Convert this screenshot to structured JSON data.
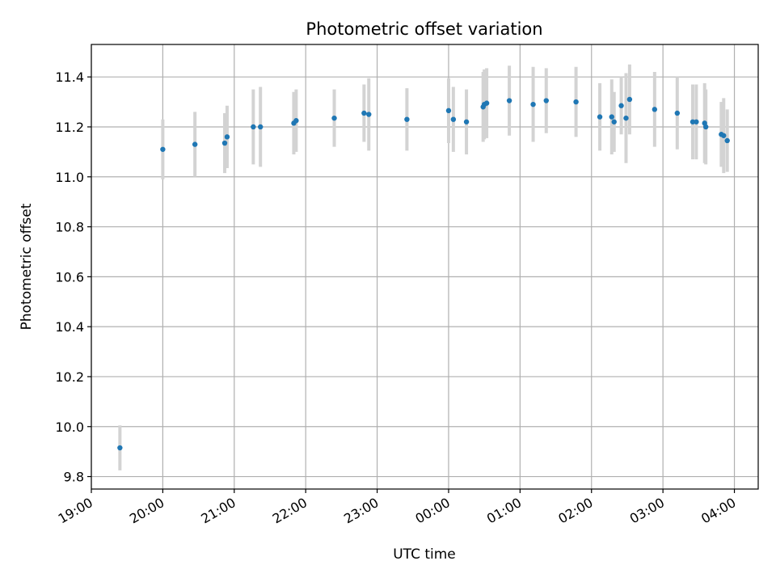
{
  "chart_data": {
    "type": "scatter",
    "title": "Photometric offset variation",
    "xlabel": "UTC time",
    "ylabel": "Photometric offset",
    "x_is_time": true,
    "xlim": [
      "19:00",
      "04:20"
    ],
    "ylim": [
      9.75,
      11.53
    ],
    "x_ticks": [
      "19:00",
      "20:00",
      "21:00",
      "22:00",
      "23:00",
      "00:00",
      "01:00",
      "02:00",
      "03:00",
      "04:00"
    ],
    "y_ticks": [
      9.8,
      10.0,
      10.2,
      10.4,
      10.6,
      10.8,
      11.0,
      11.2,
      11.4
    ],
    "grid": true,
    "marker_color": "#1f77b4",
    "errorbar_color": "#d3d3d3",
    "points": [
      {
        "t": "19:24",
        "y": 9.915,
        "err": 0.09
      },
      {
        "t": "20:00",
        "y": 11.11,
        "err": 0.12
      },
      {
        "t": "20:27",
        "y": 11.13,
        "err": 0.13
      },
      {
        "t": "20:52",
        "y": 11.135,
        "err": 0.12
      },
      {
        "t": "20:54",
        "y": 11.16,
        "err": 0.125
      },
      {
        "t": "21:16",
        "y": 11.2,
        "err": 0.15
      },
      {
        "t": "21:22",
        "y": 11.2,
        "err": 0.16
      },
      {
        "t": "21:50",
        "y": 11.215,
        "err": 0.125
      },
      {
        "t": "21:52",
        "y": 11.225,
        "err": 0.125
      },
      {
        "t": "22:24",
        "y": 11.235,
        "err": 0.115
      },
      {
        "t": "22:49",
        "y": 11.255,
        "err": 0.115
      },
      {
        "t": "22:53",
        "y": 11.25,
        "err": 0.145
      },
      {
        "t": "23:25",
        "y": 11.23,
        "err": 0.125
      },
      {
        "t": "00:00",
        "y": 11.265,
        "err": 0.13
      },
      {
        "t": "00:04",
        "y": 11.23,
        "err": 0.13
      },
      {
        "t": "00:15",
        "y": 11.22,
        "err": 0.13
      },
      {
        "t": "00:29",
        "y": 11.28,
        "err": 0.14
      },
      {
        "t": "00:30",
        "y": 11.29,
        "err": 0.14
      },
      {
        "t": "00:32",
        "y": 11.295,
        "err": 0.14
      },
      {
        "t": "00:51",
        "y": 11.305,
        "err": 0.14
      },
      {
        "t": "01:11",
        "y": 11.29,
        "err": 0.15
      },
      {
        "t": "01:22",
        "y": 11.305,
        "err": 0.13
      },
      {
        "t": "01:47",
        "y": 11.3,
        "err": 0.14
      },
      {
        "t": "02:07",
        "y": 11.24,
        "err": 0.135
      },
      {
        "t": "02:17",
        "y": 11.24,
        "err": 0.15
      },
      {
        "t": "02:19",
        "y": 11.22,
        "err": 0.12
      },
      {
        "t": "02:25",
        "y": 11.285,
        "err": 0.115
      },
      {
        "t": "02:29",
        "y": 11.235,
        "err": 0.18
      },
      {
        "t": "02:32",
        "y": 11.31,
        "err": 0.14
      },
      {
        "t": "02:53",
        "y": 11.27,
        "err": 0.15
      },
      {
        "t": "03:12",
        "y": 11.255,
        "err": 0.145
      },
      {
        "t": "03:25",
        "y": 11.22,
        "err": 0.15
      },
      {
        "t": "03:28",
        "y": 11.22,
        "err": 0.15
      },
      {
        "t": "03:35",
        "y": 11.215,
        "err": 0.16
      },
      {
        "t": "03:36",
        "y": 11.2,
        "err": 0.15
      },
      {
        "t": "03:49",
        "y": 11.17,
        "err": 0.13
      },
      {
        "t": "03:51",
        "y": 11.165,
        "err": 0.15
      },
      {
        "t": "03:54",
        "y": 11.145,
        "err": 0.125
      }
    ]
  }
}
